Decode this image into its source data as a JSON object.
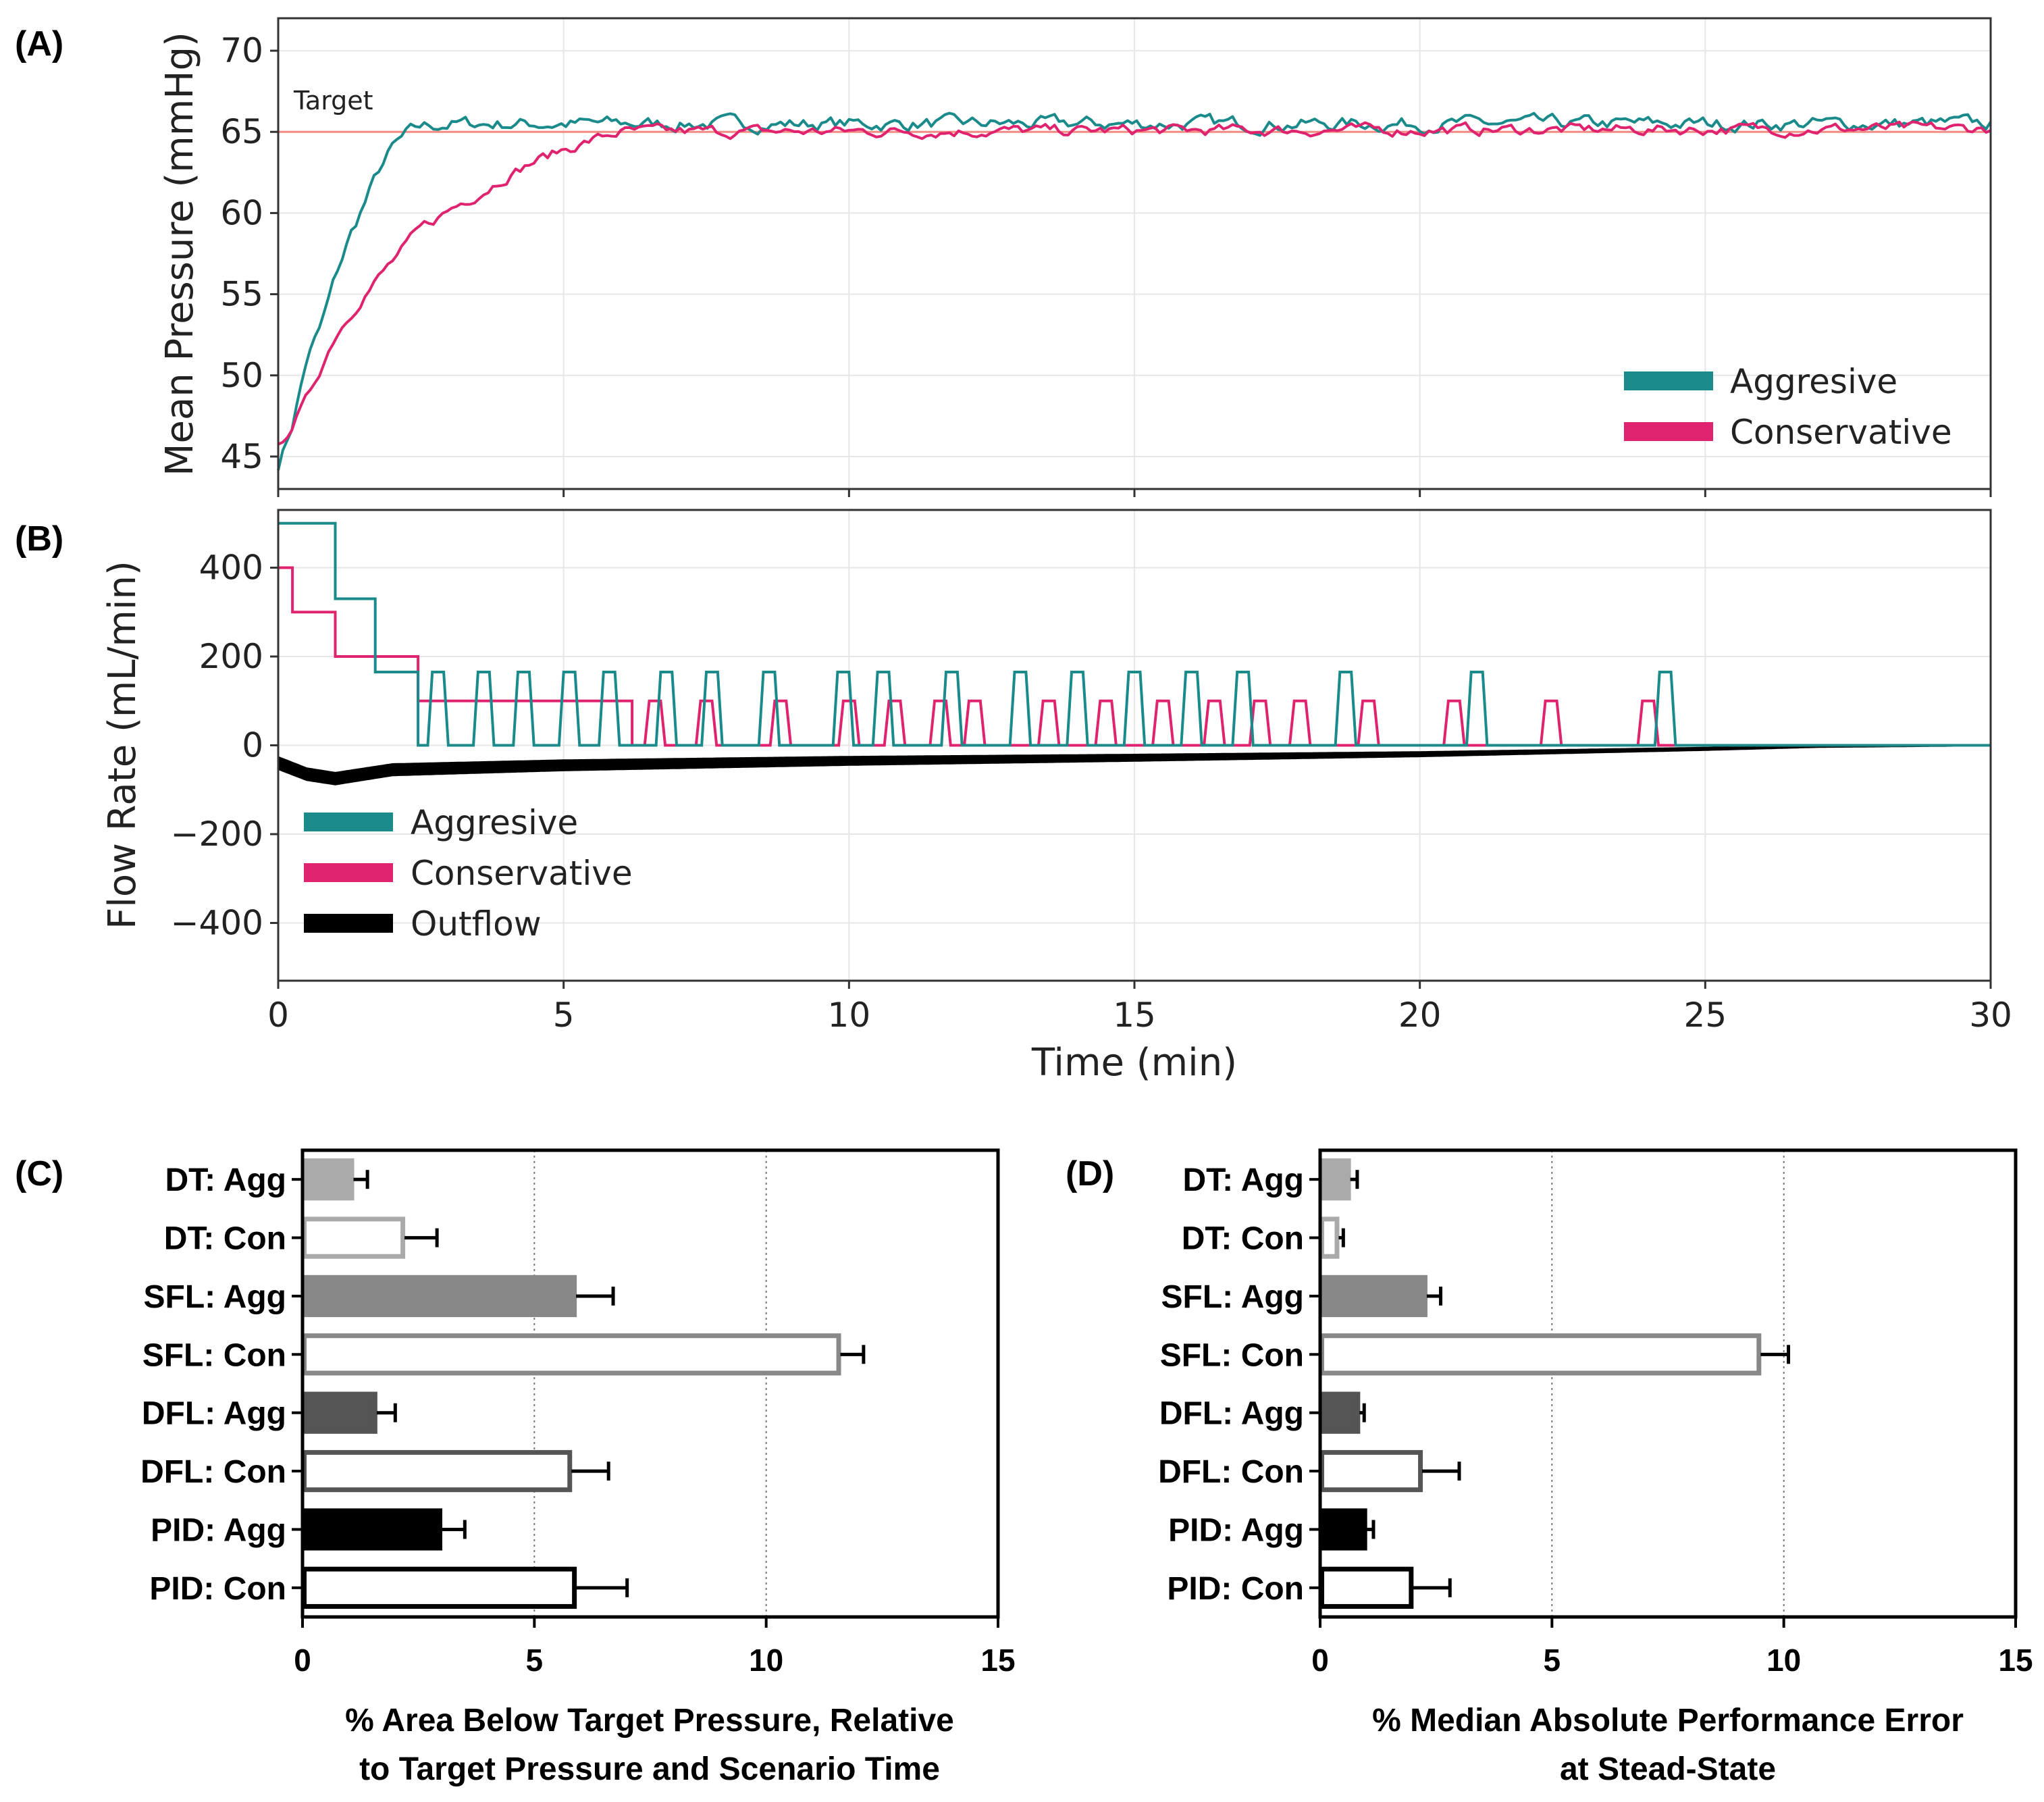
{
  "colors": {
    "aggressive": "#1a8a8a",
    "conservative": "#e0236e",
    "outflow": "#000000",
    "target_line": "#f28b82",
    "grid": "#e6e6e6"
  },
  "chart_data": [
    {
      "id": "A",
      "panel_label": "(A)",
      "type": "line",
      "ylabel": "Mean Pressure (mmHg)",
      "xlim": [
        0,
        30
      ],
      "ylim": [
        43,
        72
      ],
      "yticks": [
        "45",
        "50",
        "55",
        "60",
        "65",
        "70"
      ],
      "ytick_values": [
        45,
        50,
        55,
        60,
        65,
        70
      ],
      "xtick_values": [
        0,
        5,
        10,
        15,
        20,
        25,
        30
      ],
      "target": {
        "label": "Target",
        "value": 65
      },
      "legend": {
        "position": "bottom-right",
        "entries": [
          "Aggresive",
          "Conservative"
        ]
      },
      "series": [
        {
          "name": "Aggresive",
          "x": [
            0,
            0.25,
            0.5,
            0.75,
            1.0,
            1.25,
            1.5,
            1.75,
            2.0,
            2.25,
            2.5,
            3,
            30
          ],
          "values": [
            44.5,
            47,
            51,
            53,
            56,
            58.5,
            60.5,
            62.5,
            64,
            64.8,
            65.3,
            65.5,
            65.5
          ],
          "noise": 0.5
        },
        {
          "name": "Conservative",
          "x": [
            0,
            0.5,
            1.0,
            1.5,
            2.0,
            2.5,
            3.0,
            3.5,
            4.0,
            4.5,
            5.0,
            5.5,
            6.0,
            30
          ],
          "values": [
            45.5,
            48.5,
            52.5,
            55,
            57,
            59,
            60.2,
            61.2,
            62.3,
            63.2,
            63.9,
            64.5,
            65.0,
            65.2
          ],
          "noise": 0.4
        }
      ]
    },
    {
      "id": "B",
      "panel_label": "(B)",
      "type": "line",
      "ylabel": "Flow Rate (mL/min)",
      "xlabel": "Time (min)",
      "xlim": [
        0,
        30
      ],
      "ylim": [
        -530,
        530
      ],
      "yticks": [
        "400",
        "200",
        "0",
        "−200",
        "−400"
      ],
      "ytick_values": [
        400,
        200,
        0,
        -200,
        -400
      ],
      "xticks": [
        "0",
        "5",
        "10",
        "15",
        "20",
        "25",
        "30"
      ],
      "xtick_values": [
        0,
        5,
        10,
        15,
        20,
        25,
        30
      ],
      "legend": {
        "position": "bottom-left",
        "entries": [
          "Aggresive",
          "Conservative",
          "Outflow"
        ]
      },
      "steps": {
        "Aggresive": [
          [
            0,
            500
          ],
          [
            1.0,
            330
          ],
          [
            1.7,
            165
          ],
          [
            2.45,
            0
          ]
        ],
        "Conservative": [
          [
            0,
            400
          ],
          [
            0.25,
            300
          ],
          [
            1.0,
            200
          ],
          [
            2.45,
            100
          ],
          [
            6.2,
            0
          ]
        ]
      },
      "pulses": {
        "Aggresive": {
          "height": 165,
          "centers": [
            2.8,
            3.6,
            4.3,
            5.1,
            5.8,
            6.8,
            7.6,
            8.6,
            9.9,
            10.6,
            11.8,
            13.0,
            14.0,
            15.0,
            16.0,
            16.9,
            18.7,
            21.0,
            24.3
          ]
        },
        "Conservative": {
          "height": 100,
          "centers": [
            6.6,
            7.5,
            8.8,
            10.0,
            10.8,
            11.6,
            12.2,
            13.5,
            14.5,
            15.5,
            16.4,
            17.2,
            17.9,
            19.1,
            20.6,
            22.3,
            24.0
          ]
        }
      },
      "outflow": {
        "x": [
          0,
          0.5,
          1,
          2,
          5,
          10,
          15,
          20,
          25,
          27,
          30
        ],
        "values": [
          -40,
          -65,
          -75,
          -55,
          -45,
          -35,
          -28,
          -20,
          -8,
          -2,
          0
        ],
        "band": 14
      }
    },
    {
      "id": "C",
      "panel_label": "(C)",
      "type": "bar",
      "orientation": "horizontal",
      "categories": [
        "DT: Agg",
        "DT: Con",
        "SFL: Agg",
        "SFL: Con",
        "DFL: Agg",
        "DFL: Con",
        "PID: Agg",
        "PID: Con"
      ],
      "values": [
        1.1,
        2.2,
        5.9,
        11.6,
        1.6,
        5.8,
        3.0,
        5.9
      ],
      "errors": [
        0.3,
        0.7,
        0.8,
        0.5,
        0.4,
        0.8,
        0.5,
        1.1
      ],
      "xlim": [
        0,
        15
      ],
      "xticks": [
        "0",
        "5",
        "10",
        "15"
      ],
      "xtick_values": [
        0,
        5,
        10,
        15
      ],
      "xlabel_lines": [
        "% Area Below Target Pressure, Relative",
        "to Target Pressure and Scenario Time"
      ]
    },
    {
      "id": "D",
      "panel_label": "(D)",
      "type": "bar",
      "orientation": "horizontal",
      "categories": [
        "DT: Agg",
        "DT: Con",
        "SFL: Agg",
        "SFL: Con",
        "DFL: Agg",
        "DFL: Con",
        "PID: Agg",
        "PID: Con"
      ],
      "values": [
        0.65,
        0.4,
        2.3,
        9.5,
        0.85,
        2.2,
        1.0,
        2.0
      ],
      "errors": [
        0.15,
        0.1,
        0.3,
        0.6,
        0.1,
        0.8,
        0.15,
        0.8
      ],
      "xlim": [
        0,
        15
      ],
      "xticks": [
        "0",
        "5",
        "10",
        "15"
      ],
      "xtick_values": [
        0,
        5,
        10,
        15
      ],
      "xlabel_lines": [
        "% Median Absolute Performance Error",
        "at Stead-State"
      ]
    }
  ],
  "bar_styles": [
    {
      "fill": "#aaaaaa",
      "stroke": "#aaaaaa"
    },
    {
      "fill": "#ffffff",
      "stroke": "#aaaaaa"
    },
    {
      "fill": "#888888",
      "stroke": "#888888"
    },
    {
      "fill": "#ffffff",
      "stroke": "#888888"
    },
    {
      "fill": "#555555",
      "stroke": "#555555"
    },
    {
      "fill": "#ffffff",
      "stroke": "#555555"
    },
    {
      "fill": "#000000",
      "stroke": "#000000"
    },
    {
      "fill": "#ffffff",
      "stroke": "#000000"
    }
  ]
}
